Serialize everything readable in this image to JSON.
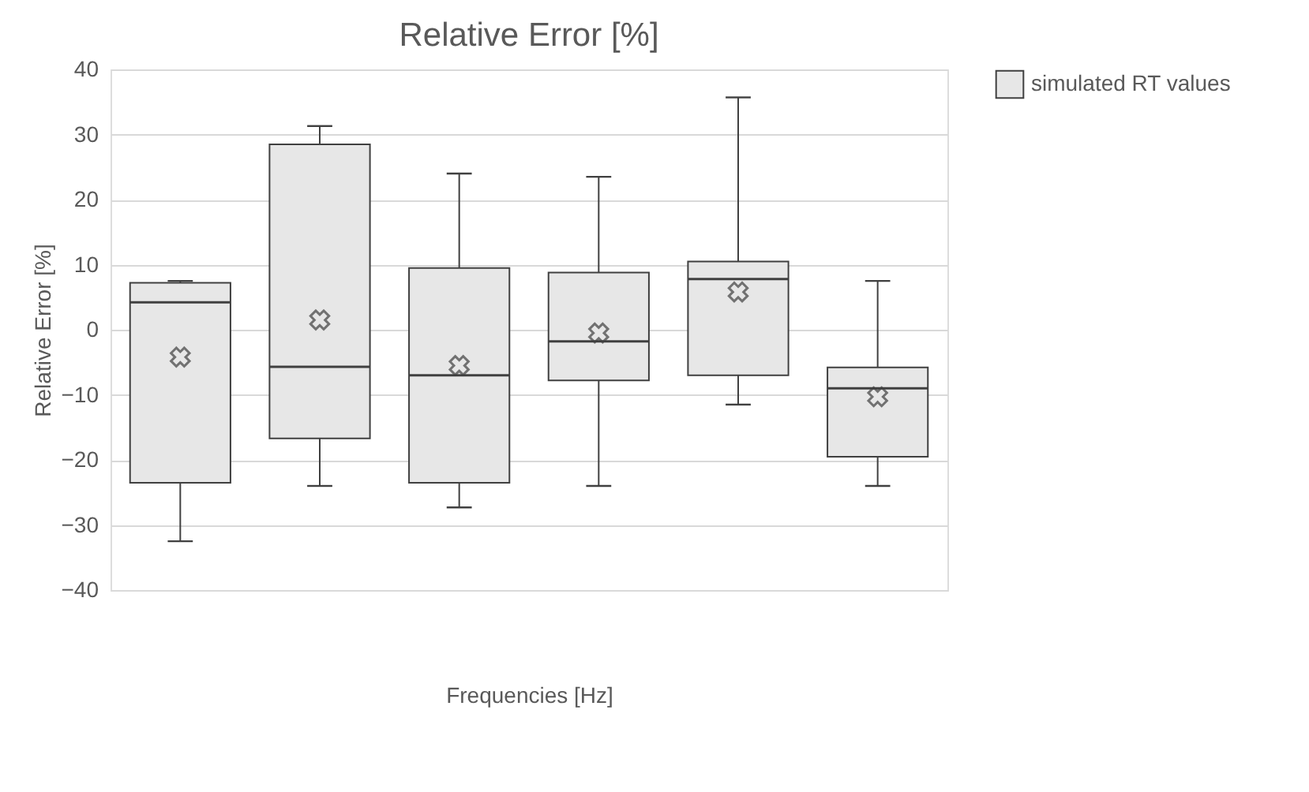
{
  "chart_data": {
    "type": "box",
    "title": "Relative Error [%]",
    "xlabel": "Frequencies [Hz]",
    "ylabel": "Relative Error [%]",
    "categories": [
      null,
      null,
      null,
      null,
      null,
      null
    ],
    "series": [
      {
        "name": "simulated RT values",
        "color": "#e7e7e7",
        "boxes": [
          {
            "low": -32.5,
            "q1": -23.5,
            "median": 4.2,
            "q3": 7.2,
            "high": 7.5,
            "mean": -4.2
          },
          {
            "low": -24,
            "q1": -16.7,
            "median": -5.7,
            "q3": 28.5,
            "high": 31.3,
            "mean": 1.5
          },
          {
            "low": -27.3,
            "q1": -23.5,
            "median": -7,
            "q3": 9.5,
            "high": 24,
            "mean": -5.5
          },
          {
            "low": -24,
            "q1": -7.8,
            "median": -1.8,
            "q3": 8.8,
            "high": 23.5,
            "mean": -0.5
          },
          {
            "low": -11.5,
            "q1": -7,
            "median": 7.8,
            "q3": 10.5,
            "high": 35.7,
            "mean": 5.8
          },
          {
            "low": -24,
            "q1": -19.5,
            "median": -9,
            "q3": -5.8,
            "high": 7.5,
            "mean": -10.3
          }
        ]
      }
    ],
    "ylim": [
      -40,
      40
    ],
    "yticks": [
      -40,
      -30,
      -20,
      -10,
      0,
      10,
      20,
      30,
      40
    ],
    "grid": "y",
    "legend": "right",
    "tick_labels": "y",
    "marker": "cross"
  }
}
